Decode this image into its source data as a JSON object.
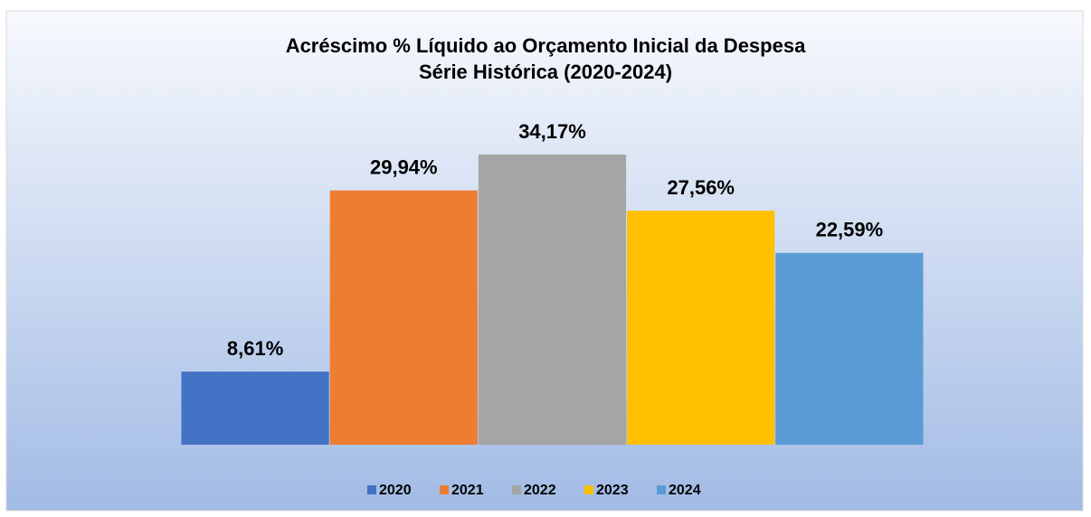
{
  "chart_data": {
    "type": "bar",
    "title": "Acréscimo % Líquido ao Orçamento Inicial da Despesa",
    "subtitle": "Série Histórica (2020-2024)",
    "categories": [
      null
    ],
    "legend": "bottom",
    "series": [
      {
        "name": "2020",
        "color": "#4472c4",
        "values": [
          8.61
        ],
        "value_labels": [
          "8,61%"
        ]
      },
      {
        "name": "2021",
        "color": "#ed7d31",
        "values": [
          29.94
        ],
        "value_labels": [
          "29,94%"
        ]
      },
      {
        "name": "2022",
        "color": "#a5a5a5",
        "values": [
          34.17
        ],
        "value_labels": [
          "34,17%"
        ]
      },
      {
        "name": "2023",
        "color": "#ffc000",
        "values": [
          27.56
        ],
        "value_labels": [
          "27,56%"
        ]
      },
      {
        "name": "2024",
        "color": "#5b9bd5",
        "values": [
          22.59
        ],
        "value_labels": [
          "22,59%"
        ]
      }
    ]
  }
}
